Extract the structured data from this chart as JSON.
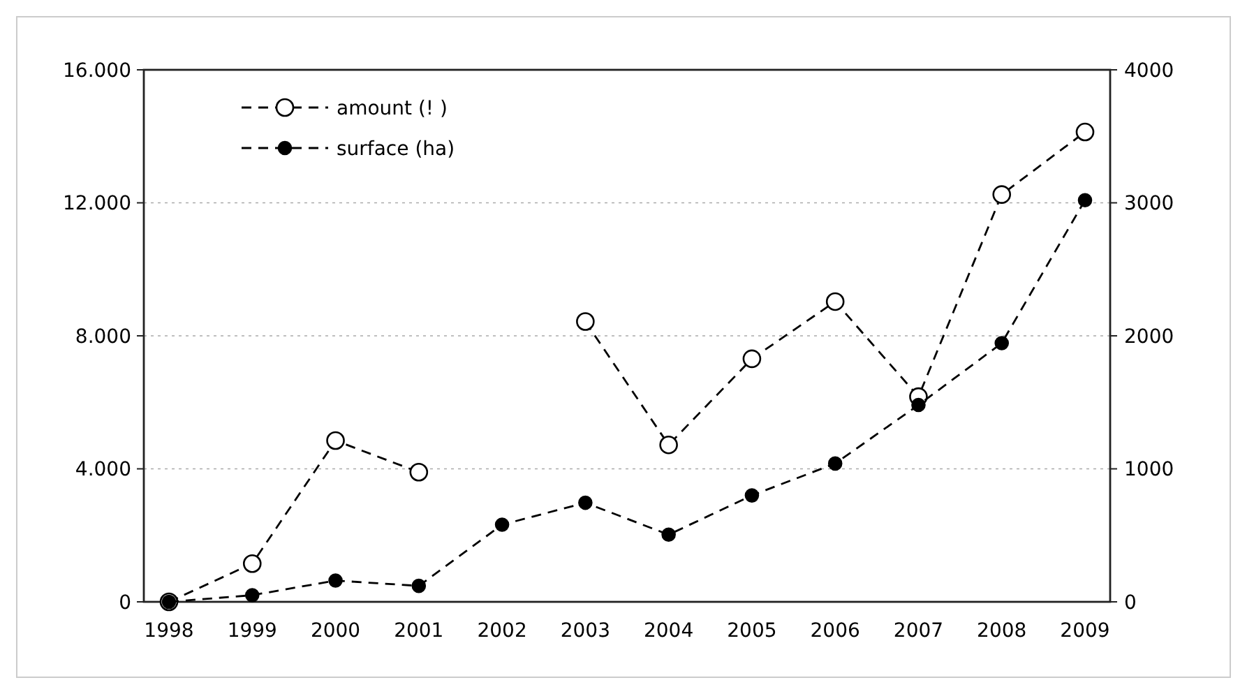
{
  "chart_data": {
    "type": "line",
    "categories": [
      "1998",
      "1999",
      "2000",
      "2001",
      "2002",
      "2003",
      "2004",
      "2005",
      "2006",
      "2007",
      "2008",
      "2009"
    ],
    "series": [
      {
        "name": "amount (! )",
        "color": "#000000",
        "values": [
          0,
          1150,
          4850,
          3900,
          null,
          8430,
          4720,
          7310,
          9030,
          6170,
          12250,
          14130
        ]
      },
      {
        "name": "surface (ha)",
        "color": "#000000",
        "axis": "y2",
        "values": [
          0,
          50,
          160,
          120,
          580,
          745,
          505,
          800,
          1040,
          1480,
          1945,
          3020
        ]
      }
    ],
    "ylim": [
      0,
      16000
    ],
    "yticks": [
      {
        "value": 0,
        "label": "0"
      },
      {
        "value": 4000,
        "label": "4.000"
      },
      {
        "value": 8000,
        "label": "8.000"
      },
      {
        "value": 12000,
        "label": "12.000"
      },
      {
        "value": 16000,
        "label": "16.000"
      }
    ],
    "y2lim": [
      0,
      4000
    ],
    "y2ticks": [
      0,
      1000,
      2000,
      3000,
      4000
    ],
    "grid": "y",
    "legend": "top left",
    "marker": "circle",
    "line_style": "dashed"
  }
}
